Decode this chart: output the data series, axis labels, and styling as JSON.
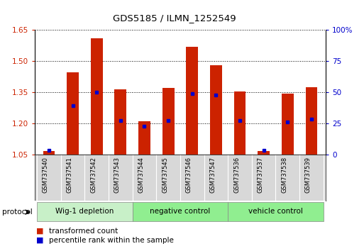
{
  "title": "GDS5185 / ILMN_1252549",
  "samples": [
    "GSM737540",
    "GSM737541",
    "GSM737542",
    "GSM737543",
    "GSM737544",
    "GSM737545",
    "GSM737546",
    "GSM737547",
    "GSM737536",
    "GSM737537",
    "GSM737538",
    "GSM737539"
  ],
  "red_values": [
    1.065,
    1.445,
    1.61,
    1.365,
    1.21,
    1.37,
    1.57,
    1.48,
    1.355,
    1.065,
    1.345,
    1.375
  ],
  "blue_values": [
    1.07,
    1.285,
    1.35,
    1.215,
    1.185,
    1.215,
    1.345,
    1.335,
    1.215,
    1.07,
    1.205,
    1.22
  ],
  "y_min": 1.05,
  "y_max": 1.65,
  "y_ticks": [
    1.05,
    1.2,
    1.35,
    1.5,
    1.65
  ],
  "right_y_ticks": [
    0,
    25,
    50,
    75,
    100
  ],
  "groups": [
    {
      "label": "Wig-1 depletion",
      "start": 0,
      "end": 3
    },
    {
      "label": "negative control",
      "start": 4,
      "end": 7
    },
    {
      "label": "vehicle control",
      "start": 8,
      "end": 11
    }
  ],
  "group_colors": [
    "#c8f0c8",
    "#90ee90",
    "#90ee90"
  ],
  "bar_color": "#cc2200",
  "marker_color": "#0000cc",
  "plot_bg_color": "#ffffff",
  "tick_label_color_left": "#cc2200",
  "tick_label_color_right": "#0000cc",
  "bar_width": 0.5,
  "legend_labels": [
    "transformed count",
    "percentile rank within the sample"
  ]
}
